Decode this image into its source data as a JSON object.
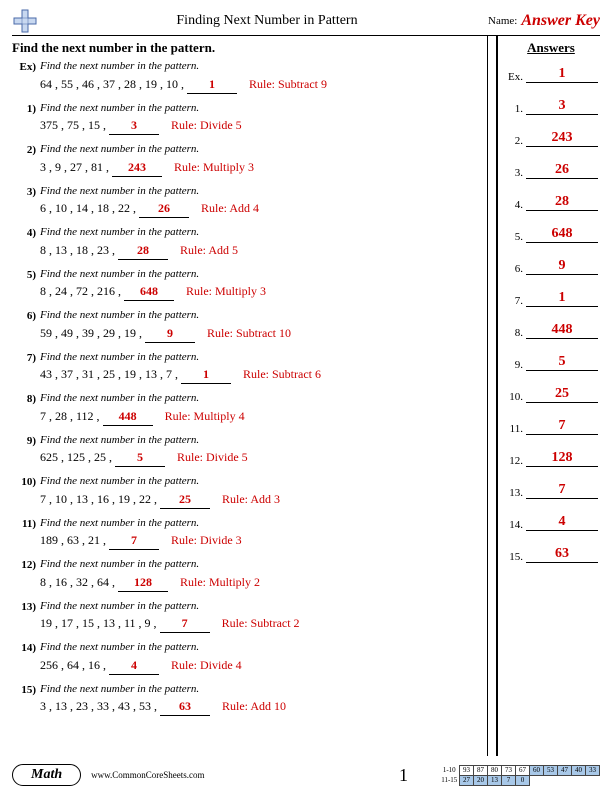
{
  "header": {
    "title": "Finding Next Number in Pattern",
    "name_label": "Name:",
    "answer_key": "Answer Key"
  },
  "instruction": "Find the next number in the pattern.",
  "answers_title": "Answers",
  "prompt_text": "Find the next number in the pattern.",
  "problems": [
    {
      "num": "Ex)",
      "seq": "64 , 55 , 46 , 37 , 28 , 19 , 10 ,",
      "ans": "1",
      "rule": "Rule: Subtract 9"
    },
    {
      "num": "1)",
      "seq": "375 , 75 , 15 ,",
      "ans": "3",
      "rule": "Rule: Divide 5"
    },
    {
      "num": "2)",
      "seq": "3 , 9 , 27 , 81 ,",
      "ans": "243",
      "rule": "Rule: Multiply 3"
    },
    {
      "num": "3)",
      "seq": "6 , 10 , 14 , 18 , 22 ,",
      "ans": "26",
      "rule": "Rule: Add 4"
    },
    {
      "num": "4)",
      "seq": "8 , 13 , 18 , 23 ,",
      "ans": "28",
      "rule": "Rule: Add 5"
    },
    {
      "num": "5)",
      "seq": "8 , 24 , 72 , 216 ,",
      "ans": "648",
      "rule": "Rule: Multiply 3"
    },
    {
      "num": "6)",
      "seq": "59 , 49 , 39 , 29 , 19 ,",
      "ans": "9",
      "rule": "Rule: Subtract 10"
    },
    {
      "num": "7)",
      "seq": "43 , 37 , 31 , 25 , 19 , 13 , 7 ,",
      "ans": "1",
      "rule": "Rule: Subtract 6"
    },
    {
      "num": "8)",
      "seq": "7 , 28 , 112 ,",
      "ans": "448",
      "rule": "Rule: Multiply 4"
    },
    {
      "num": "9)",
      "seq": "625 , 125 , 25 ,",
      "ans": "5",
      "rule": "Rule: Divide 5"
    },
    {
      "num": "10)",
      "seq": "7 , 10 , 13 , 16 , 19 , 22 ,",
      "ans": "25",
      "rule": "Rule: Add 3"
    },
    {
      "num": "11)",
      "seq": "189 , 63 , 21 ,",
      "ans": "7",
      "rule": "Rule: Divide 3"
    },
    {
      "num": "12)",
      "seq": "8 , 16 , 32 , 64 ,",
      "ans": "128",
      "rule": "Rule: Multiply 2"
    },
    {
      "num": "13)",
      "seq": "19 , 17 , 15 , 13 , 11 , 9 ,",
      "ans": "7",
      "rule": "Rule: Subtract 2"
    },
    {
      "num": "14)",
      "seq": "256 , 64 , 16 ,",
      "ans": "4",
      "rule": "Rule: Divide 4"
    },
    {
      "num": "15)",
      "seq": "3 , 13 , 23 , 33 , 43 , 53 ,",
      "ans": "63",
      "rule": "Rule: Add 10"
    }
  ],
  "answer_column": [
    {
      "label": "Ex.",
      "val": "1"
    },
    {
      "label": "1.",
      "val": "3"
    },
    {
      "label": "2.",
      "val": "243"
    },
    {
      "label": "3.",
      "val": "26"
    },
    {
      "label": "4.",
      "val": "28"
    },
    {
      "label": "5.",
      "val": "648"
    },
    {
      "label": "6.",
      "val": "9"
    },
    {
      "label": "7.",
      "val": "1"
    },
    {
      "label": "8.",
      "val": "448"
    },
    {
      "label": "9.",
      "val": "5"
    },
    {
      "label": "10.",
      "val": "25"
    },
    {
      "label": "11.",
      "val": "7"
    },
    {
      "label": "12.",
      "val": "128"
    },
    {
      "label": "13.",
      "val": "7"
    },
    {
      "label": "14.",
      "val": "4"
    },
    {
      "label": "15.",
      "val": "63"
    }
  ],
  "footer": {
    "badge": "Math",
    "site": "www.CommonCoreSheets.com",
    "page": "1",
    "grid": {
      "row1_label": "1-10",
      "row2_label": "11-15",
      "row1": [
        "93",
        "87",
        "80",
        "73",
        "67",
        "60",
        "53",
        "47",
        "40",
        "33"
      ],
      "row2": [
        "27",
        "20",
        "13",
        "7",
        "0"
      ],
      "row2_shade_count": 5
    }
  }
}
